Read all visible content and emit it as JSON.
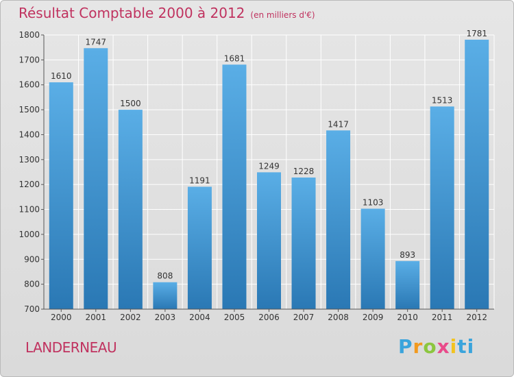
{
  "header": {
    "title": "Résultat Comptable 2000 à 2012",
    "subtitle": "(en milliers d'€)"
  },
  "footer": {
    "town": "LANDERNEAU",
    "logo_letters": [
      "P",
      "r",
      "o",
      "x",
      "i",
      "ti"
    ]
  },
  "chart_data": {
    "type": "bar",
    "title": "Résultat Comptable 2000 à 2012",
    "subtitle": "(en milliers d'€)",
    "xlabel": "",
    "ylabel": "",
    "categories": [
      "2000",
      "2001",
      "2002",
      "2003",
      "2004",
      "2005",
      "2006",
      "2007",
      "2008",
      "2009",
      "2010",
      "2011",
      "2012"
    ],
    "values": [
      1610,
      1747,
      1500,
      808,
      1191,
      1681,
      1249,
      1228,
      1417,
      1103,
      893,
      1513,
      1781
    ],
    "data_labels": [
      "1610",
      "1747",
      "1500",
      "808",
      "1191",
      "1681",
      "1249",
      "1228",
      "1417",
      "1103",
      "893",
      "1513",
      "1781"
    ],
    "ylim": [
      700,
      1800
    ],
    "yticks": [
      700,
      800,
      900,
      1000,
      1100,
      1200,
      1300,
      1400,
      1500,
      1600,
      1700,
      1800
    ],
    "ytick_labels": [
      "700",
      "800",
      "900",
      "1000",
      "1100",
      "1200",
      "1300",
      "1400",
      "1500",
      "1600",
      "1700",
      "1800"
    ],
    "grid": true,
    "colors": {
      "bar_top": "#5aaee6",
      "bar_bottom": "#2a78b4",
      "grid": "#ffffff",
      "axis": "#555555"
    }
  }
}
